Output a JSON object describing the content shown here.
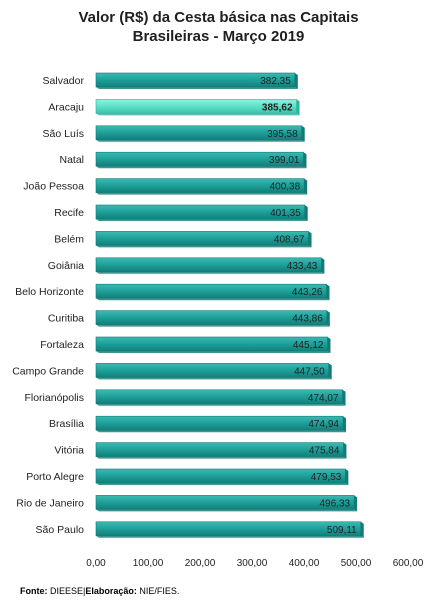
{
  "source": {
    "fonte_label": "Fonte:",
    "fonte_value": "DIEESE",
    "separator": "|",
    "elab_label": "Elaboração:",
    "elab_value": "NIE/FIES."
  },
  "colors": {
    "bar": "#1e9f99",
    "bar_dark": "#117b76",
    "highlight": "#5fe0c8",
    "highlight_dark": "#2fb59e"
  },
  "chart_data": {
    "type": "bar",
    "orientation": "horizontal",
    "title": "Valor (R$) da Cesta básica nas Capitais",
    "subtitle": "Brasileiras - Março 2019",
    "categories": [
      "Salvador",
      "Aracaju",
      "São Luís",
      "Natal",
      "João Pessoa",
      "Recife",
      "Belém",
      "Goiânia",
      "Belo Horizonte",
      "Curitiba",
      "Fortaleza",
      "Campo Grande",
      "Florianópolis",
      "Brasília",
      "Vitória",
      "Porto Alegre",
      "Rio de Janeiro",
      "São Paulo"
    ],
    "values": [
      382.35,
      385.62,
      395.58,
      399.01,
      400.38,
      401.35,
      408.67,
      433.43,
      443.26,
      443.86,
      445.12,
      447.5,
      474.07,
      474.94,
      475.84,
      479.53,
      496.33,
      509.11
    ],
    "value_labels": [
      "382,35",
      "385,62",
      "395,58",
      "399,01",
      "400,38",
      "401,35",
      "408,67",
      "433,43",
      "443,26",
      "443,86",
      "445,12",
      "447,50",
      "474,07",
      "474,94",
      "475,84",
      "479,53",
      "496,33",
      "509,11"
    ],
    "highlight_category": "Aracaju",
    "xlim": [
      0,
      600
    ],
    "xticks": [
      0,
      100,
      200,
      300,
      400,
      500,
      600
    ],
    "xtick_labels": [
      "0,00",
      "100,00",
      "200,00",
      "300,00",
      "400,00",
      "500,00",
      "600,00"
    ],
    "xlabel": "",
    "ylabel": "",
    "grid": false,
    "legend": "none"
  }
}
